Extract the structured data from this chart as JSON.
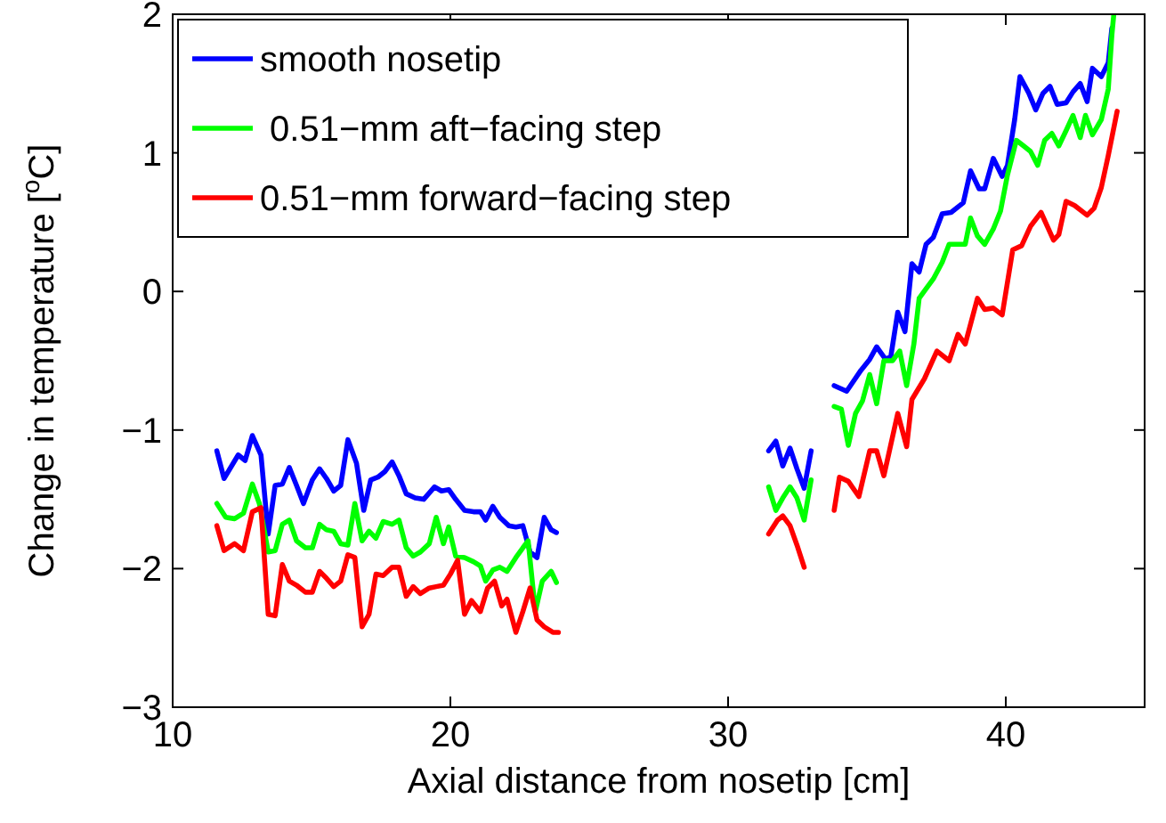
{
  "chart_data": {
    "type": "line",
    "xlabel": "Axial distance from nosetip [cm]",
    "ylabel": "Change in temperature [$^{o}$C]",
    "xlim": [
      10,
      45
    ],
    "xticks": [
      10,
      20,
      30,
      40
    ],
    "ylim": [
      -3,
      2
    ],
    "yticks": [
      -3,
      -2,
      -1,
      0,
      1,
      2
    ],
    "grid": false,
    "legend": "top left",
    "line_style": "solid",
    "series": [
      {
        "name": "smooth nosetip",
        "color": "#0000ff",
        "x": [
          11.59,
          11.85,
          12.36,
          12.61,
          12.87,
          13.18,
          13.44,
          13.69,
          13.95,
          14.2,
          14.46,
          14.71,
          15.03,
          15.29,
          15.54,
          15.8,
          16.05,
          16.31,
          16.62,
          16.88,
          17.13,
          17.39,
          17.64,
          17.9,
          18.15,
          18.41,
          18.73,
          19.04,
          19.43,
          19.68,
          19.94,
          20.19,
          20.51,
          20.83,
          21.08,
          21.27,
          21.53,
          21.78,
          22.1,
          22.36,
          22.61,
          22.87,
          23.12,
          23.38,
          23.63,
          23.82,
          27,
          31.46,
          31.72,
          31.97,
          32.23,
          32.48,
          32.74,
          32.99,
          33.4,
          33.82,
          34.27,
          34.78,
          35.1,
          35.35,
          35.67,
          35.86,
          36.11,
          36.37,
          36.62,
          36.88,
          37.13,
          37.39,
          37.71,
          38.03,
          38.47,
          38.73,
          39.04,
          39.24,
          39.55,
          39.87,
          40.06,
          40.32,
          40.51,
          40.83,
          41.08,
          41.34,
          41.59,
          41.85,
          42.17,
          42.42,
          42.68,
          42.93,
          43.12,
          43.44,
          43.69,
          43.82
        ],
        "values": [
          -1.15,
          -1.35,
          -1.18,
          -1.22,
          -1.04,
          -1.18,
          -1.75,
          -1.4,
          -1.39,
          -1.27,
          -1.4,
          -1.53,
          -1.36,
          -1.28,
          -1.35,
          -1.44,
          -1.4,
          -1.07,
          -1.24,
          -1.58,
          -1.36,
          -1.34,
          -1.3,
          -1.23,
          -1.33,
          -1.46,
          -1.49,
          -1.5,
          -1.41,
          -1.44,
          -1.43,
          -1.5,
          -1.58,
          -1.59,
          -1.59,
          -1.65,
          -1.55,
          -1.63,
          -1.69,
          -1.7,
          -1.69,
          -1.88,
          -1.92,
          -1.63,
          -1.72,
          -1.74,
          null,
          -1.15,
          -1.08,
          -1.26,
          -1.13,
          -1.28,
          -1.42,
          -1.15,
          null,
          -0.68,
          -0.72,
          -0.57,
          -0.49,
          -0.4,
          -0.49,
          -0.47,
          -0.15,
          -0.29,
          0.2,
          0.14,
          0.34,
          0.39,
          0.56,
          0.57,
          0.64,
          0.87,
          0.74,
          0.74,
          0.96,
          0.83,
          0.91,
          1.24,
          1.55,
          1.43,
          1.31,
          1.43,
          1.48,
          1.35,
          1.36,
          1.44,
          1.5,
          1.37,
          1.61,
          1.55,
          1.65,
          1.9
        ]
      },
      {
        "name": " 0.51−mm aft−facing step",
        "color": "#00ff00",
        "x": [
          11.59,
          11.91,
          12.23,
          12.55,
          12.87,
          13.12,
          13.44,
          13.69,
          13.95,
          14.2,
          14.46,
          14.78,
          15.03,
          15.29,
          15.54,
          15.8,
          16.05,
          16.31,
          16.56,
          16.82,
          17.07,
          17.32,
          17.58,
          17.9,
          18.15,
          18.41,
          18.66,
          18.92,
          19.24,
          19.49,
          19.75,
          19.94,
          20.19,
          20.51,
          20.83,
          21.08,
          21.27,
          21.53,
          21.78,
          22.04,
          22.36,
          22.61,
          22.8,
          23.06,
          23.31,
          23.63,
          23.82,
          27,
          31.46,
          31.72,
          31.97,
          32.23,
          32.48,
          32.74,
          32.99,
          33.4,
          33.82,
          34.08,
          34.33,
          34.59,
          34.84,
          35.1,
          35.35,
          35.61,
          35.92,
          36.18,
          36.43,
          36.69,
          36.88,
          37.13,
          37.39,
          37.71,
          37.96,
          38.34,
          38.54,
          38.73,
          38.98,
          39.24,
          39.55,
          39.81,
          40.06,
          40.38,
          40.64,
          40.89,
          41.15,
          41.4,
          41.66,
          41.91,
          42.17,
          42.42,
          42.68,
          42.87,
          43.12,
          43.44,
          43.69,
          43.82,
          43.89
        ],
        "values": [
          -1.53,
          -1.63,
          -1.64,
          -1.6,
          -1.39,
          -1.53,
          -1.88,
          -1.87,
          -1.68,
          -1.65,
          -1.8,
          -1.85,
          -1.85,
          -1.68,
          -1.72,
          -1.73,
          -1.82,
          -1.83,
          -1.53,
          -1.8,
          -1.73,
          -1.78,
          -1.66,
          -1.68,
          -1.65,
          -1.85,
          -1.91,
          -1.88,
          -1.82,
          -1.63,
          -1.82,
          -1.7,
          -1.91,
          -1.92,
          -1.95,
          -1.98,
          -2.09,
          -2.01,
          -1.99,
          -2.02,
          -1.92,
          -1.85,
          -1.8,
          -2.31,
          -2.09,
          -2.02,
          -2.1,
          null,
          -1.41,
          -1.58,
          -1.49,
          -1.41,
          -1.49,
          -1.65,
          -1.36,
          null,
          -0.83,
          -0.85,
          -1.11,
          -0.88,
          -0.79,
          -0.6,
          -0.81,
          -0.5,
          -0.5,
          -0.43,
          -0.68,
          -0.38,
          -0.05,
          0.02,
          0.09,
          0.21,
          0.34,
          0.34,
          0.34,
          0.53,
          0.4,
          0.34,
          0.45,
          0.58,
          0.84,
          1.09,
          1.05,
          1.01,
          0.91,
          1.09,
          1.14,
          1.05,
          1.16,
          1.27,
          1.11,
          1.27,
          1.13,
          1.24,
          1.46,
          1.85,
          2.0
        ]
      },
      {
        "name": "0.51−mm forward−facing step",
        "color": "#ff0000",
        "x": [
          11.59,
          11.85,
          12.23,
          12.55,
          12.87,
          13.18,
          13.44,
          13.69,
          13.95,
          14.2,
          14.46,
          14.78,
          15.03,
          15.29,
          15.54,
          15.8,
          16.05,
          16.31,
          16.56,
          16.82,
          17.07,
          17.32,
          17.58,
          17.9,
          18.15,
          18.41,
          18.66,
          18.92,
          19.24,
          19.49,
          19.75,
          20.0,
          20.26,
          20.51,
          20.76,
          21.08,
          21.34,
          21.59,
          21.85,
          22.04,
          22.36,
          22.61,
          22.87,
          23.12,
          23.38,
          23.69,
          23.89,
          27,
          31.46,
          31.78,
          31.97,
          32.23,
          32.48,
          32.74,
          33.2,
          33.82,
          34.01,
          34.33,
          34.71,
          35.1,
          35.35,
          35.61,
          36.11,
          36.43,
          36.62,
          37.07,
          37.52,
          37.96,
          38.28,
          38.54,
          38.98,
          39.24,
          39.55,
          39.87,
          40.25,
          40.57,
          40.89,
          41.27,
          41.72,
          41.91,
          42.17,
          42.48,
          42.93,
          43.18,
          43.44,
          43.69,
          44.01
        ],
        "values": [
          -1.69,
          -1.87,
          -1.82,
          -1.87,
          -1.59,
          -1.56,
          -2.33,
          -2.34,
          -1.97,
          -2.09,
          -2.12,
          -2.17,
          -2.17,
          -2.02,
          -2.07,
          -2.13,
          -2.09,
          -1.9,
          -1.92,
          -2.42,
          -2.33,
          -2.04,
          -2.05,
          -1.99,
          -1.99,
          -2.2,
          -2.13,
          -2.18,
          -2.14,
          -2.13,
          -2.12,
          -2.04,
          -1.94,
          -2.33,
          -2.23,
          -2.31,
          -2.14,
          -2.09,
          -2.27,
          -2.22,
          -2.46,
          -2.31,
          -2.14,
          -2.37,
          -2.42,
          -2.46,
          -2.46,
          null,
          -1.75,
          -1.65,
          -1.62,
          -1.69,
          -1.83,
          -1.99,
          null,
          -1.58,
          -1.34,
          -1.37,
          -1.48,
          -1.15,
          -1.15,
          -1.33,
          -0.88,
          -1.12,
          -0.78,
          -0.63,
          -0.43,
          -0.5,
          -0.31,
          -0.38,
          -0.05,
          -0.13,
          -0.12,
          -0.17,
          0.3,
          0.33,
          0.47,
          0.57,
          0.37,
          0.41,
          0.65,
          0.62,
          0.55,
          0.6,
          0.75,
          0.98,
          1.3
        ]
      }
    ]
  }
}
